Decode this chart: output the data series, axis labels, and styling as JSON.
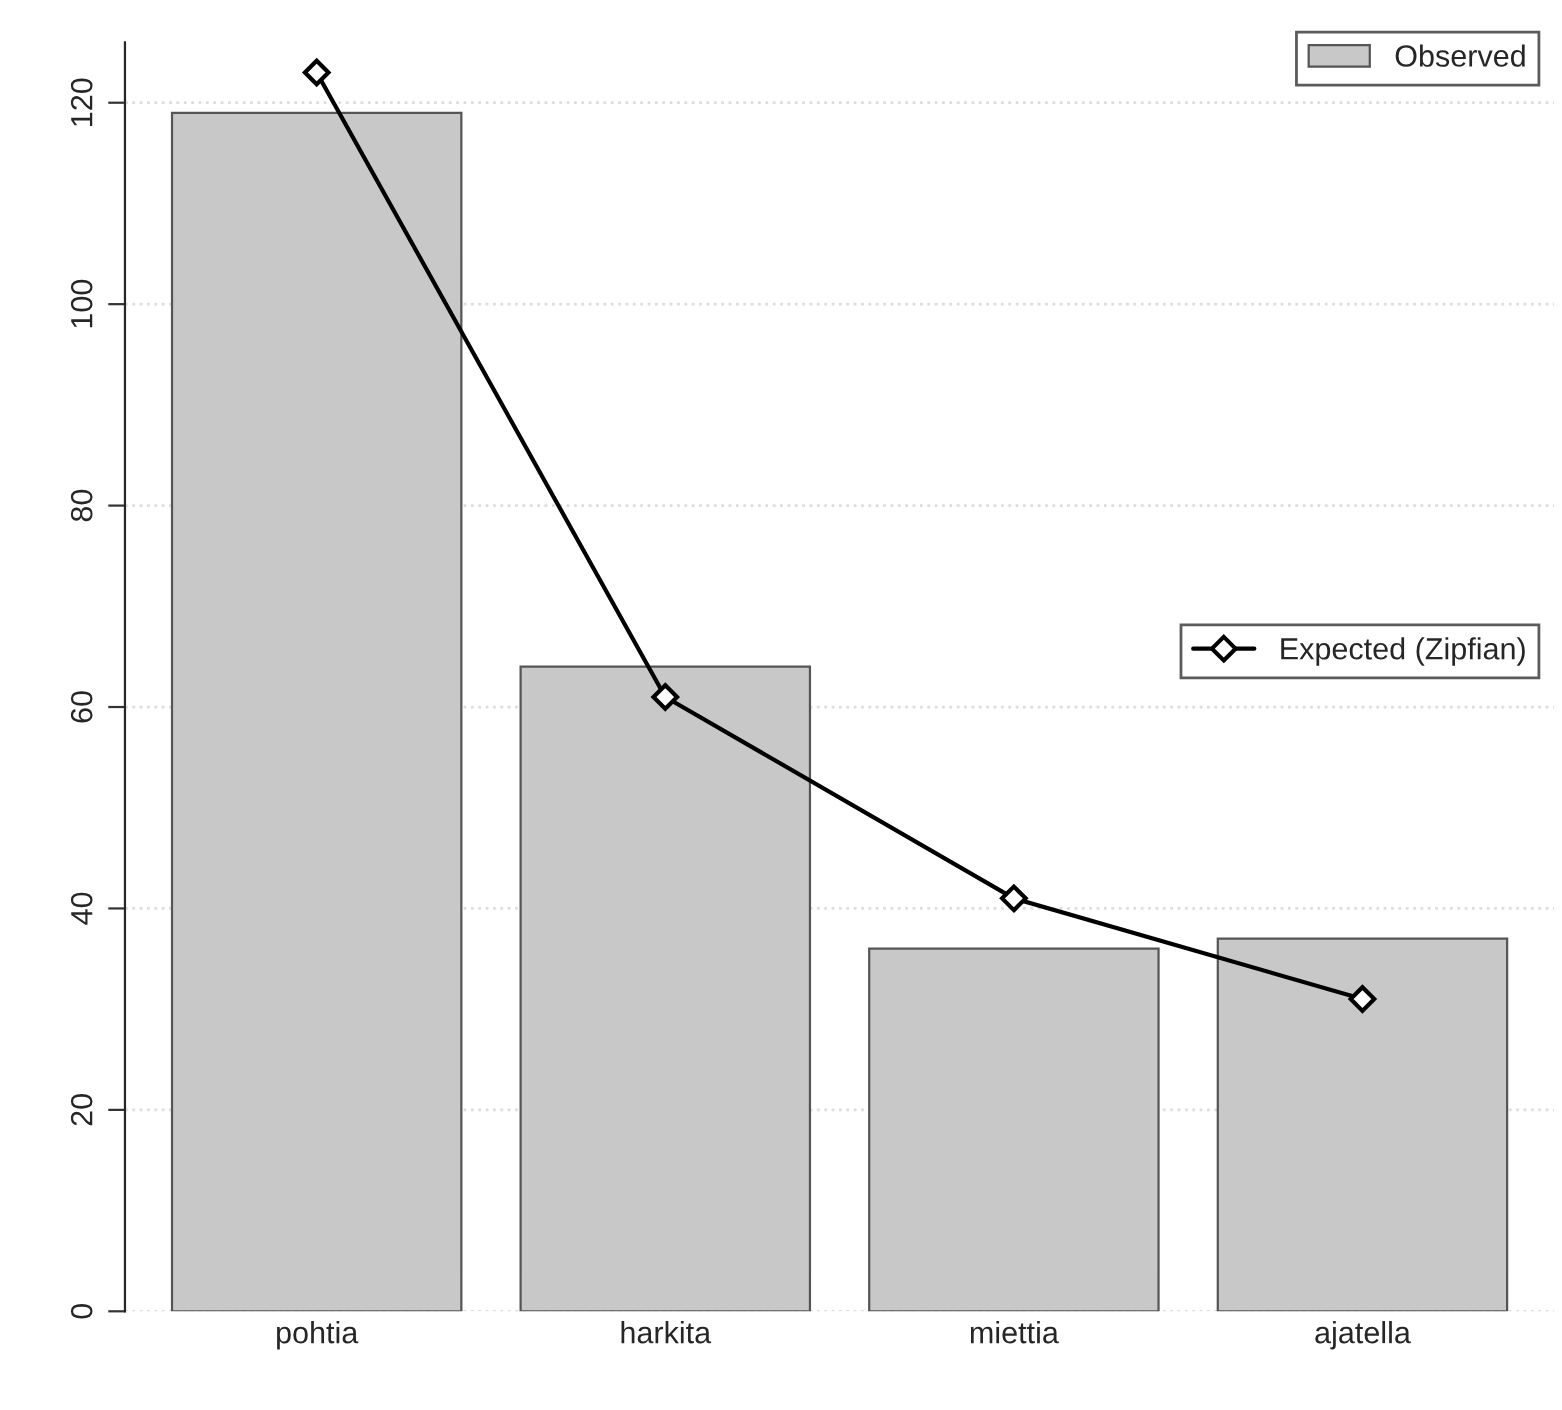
{
  "chart_data": {
    "type": "bar",
    "categories": [
      "pohtia",
      "harkita",
      "miettia",
      "ajatella"
    ],
    "series": [
      {
        "name": "Observed",
        "color": "#c8c8c8",
        "values": [
          119,
          64,
          36,
          37
        ]
      },
      {
        "name": "Expected (Zipfian)",
        "type": "line",
        "color": "#000000",
        "values": [
          123,
          61,
          41,
          31
        ],
        "marker": "diamond",
        "line_style": "solid"
      }
    ],
    "ylim": [
      0,
      126
    ],
    "yticks": [
      0,
      20,
      40,
      60,
      80,
      100,
      120
    ],
    "grid": "y",
    "legend": "top right"
  }
}
